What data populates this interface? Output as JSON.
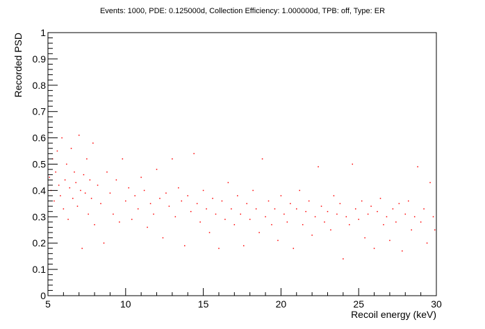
{
  "chart_data": {
    "type": "scatter",
    "title": "Events: 1000, PDE: 0.125000d, Collection Efficiency: 1.000000d, TPB: off, Type: ER",
    "xlabel": "Recoil energy (keV)",
    "ylabel": "Recorded PSD",
    "xlim": [
      5,
      30
    ],
    "ylim": [
      0,
      1
    ],
    "x_ticks": [
      5,
      10,
      15,
      20,
      25,
      30
    ],
    "x_tick_labels": [
      "5",
      "10",
      "15",
      "20",
      "25",
      "30"
    ],
    "y_ticks": [
      0,
      0.1,
      0.2,
      0.3,
      0.4,
      0.5,
      0.6,
      0.7,
      0.8,
      0.9,
      1
    ],
    "y_tick_labels": [
      "0",
      "0.1",
      "0.2",
      "0.3",
      "0.4",
      "0.5",
      "0.6",
      "0.7",
      "0.8",
      "0.9",
      "1"
    ],
    "grid": false,
    "legend": "none",
    "marker_color": "#ff0000",
    "axis_color": "#000000",
    "series": [
      {
        "points": [
          [
            5.1,
            0.45
          ],
          [
            5.2,
            0.4
          ],
          [
            5.3,
            0.52
          ],
          [
            5.4,
            0.36
          ],
          [
            5.5,
            0.47
          ],
          [
            5.6,
            0.55
          ],
          [
            5.7,
            0.42
          ],
          [
            5.8,
            0.38
          ],
          [
            5.9,
            0.6
          ],
          [
            6.0,
            0.33
          ],
          [
            6.1,
            0.44
          ],
          [
            6.2,
            0.5
          ],
          [
            6.3,
            0.29
          ],
          [
            6.4,
            0.41
          ],
          [
            6.5,
            0.56
          ],
          [
            6.6,
            0.37
          ],
          [
            6.7,
            0.47
          ],
          [
            6.8,
            0.43
          ],
          [
            6.9,
            0.34
          ],
          [
            7.0,
            0.61
          ],
          [
            7.1,
            0.4
          ],
          [
            7.2,
            0.18
          ],
          [
            7.3,
            0.46
          ],
          [
            7.4,
            0.39
          ],
          [
            7.5,
            0.52
          ],
          [
            7.6,
            0.31
          ],
          [
            7.7,
            0.44
          ],
          [
            7.8,
            0.37
          ],
          [
            7.9,
            0.58
          ],
          [
            8.0,
            0.27
          ],
          [
            8.2,
            0.42
          ],
          [
            8.4,
            0.35
          ],
          [
            8.6,
            0.2
          ],
          [
            8.8,
            0.47
          ],
          [
            9.0,
            0.39
          ],
          [
            9.2,
            0.31
          ],
          [
            9.4,
            0.44
          ],
          [
            9.6,
            0.28
          ],
          [
            9.8,
            0.52
          ],
          [
            10.0,
            0.36
          ],
          [
            10.2,
            0.41
          ],
          [
            10.4,
            0.29
          ],
          [
            10.6,
            0.38
          ],
          [
            10.8,
            0.33
          ],
          [
            11.0,
            0.45
          ],
          [
            11.2,
            0.4
          ],
          [
            11.4,
            0.26
          ],
          [
            11.6,
            0.35
          ],
          [
            11.8,
            0.31
          ],
          [
            12.0,
            0.48
          ],
          [
            12.2,
            0.37
          ],
          [
            12.4,
            0.22
          ],
          [
            12.6,
            0.39
          ],
          [
            12.8,
            0.34
          ],
          [
            13.0,
            0.52
          ],
          [
            13.2,
            0.3
          ],
          [
            13.4,
            0.41
          ],
          [
            13.6,
            0.36
          ],
          [
            13.8,
            0.19
          ],
          [
            14.0,
            0.38
          ],
          [
            14.2,
            0.32
          ],
          [
            14.4,
            0.54
          ],
          [
            14.6,
            0.35
          ],
          [
            14.8,
            0.28
          ],
          [
            15.0,
            0.4
          ],
          [
            15.2,
            0.33
          ],
          [
            15.4,
            0.24
          ],
          [
            15.6,
            0.37
          ],
          [
            15.8,
            0.31
          ],
          [
            16.0,
            0.18
          ],
          [
            16.2,
            0.36
          ],
          [
            16.4,
            0.29
          ],
          [
            16.6,
            0.43
          ],
          [
            16.8,
            0.33
          ],
          [
            17.0,
            0.27
          ],
          [
            17.2,
            0.38
          ],
          [
            17.4,
            0.31
          ],
          [
            17.6,
            0.19
          ],
          [
            17.8,
            0.35
          ],
          [
            18.0,
            0.29
          ],
          [
            18.2,
            0.4
          ],
          [
            18.4,
            0.33
          ],
          [
            18.6,
            0.24
          ],
          [
            18.8,
            0.52
          ],
          [
            19.0,
            0.3
          ],
          [
            19.2,
            0.36
          ],
          [
            19.4,
            0.27
          ],
          [
            19.6,
            0.33
          ],
          [
            19.8,
            0.21
          ],
          [
            20.0,
            0.38
          ],
          [
            20.2,
            0.31
          ],
          [
            20.4,
            0.28
          ],
          [
            20.6,
            0.35
          ],
          [
            20.8,
            0.18
          ],
          [
            21.0,
            0.33
          ],
          [
            21.2,
            0.4
          ],
          [
            21.4,
            0.27
          ],
          [
            21.6,
            0.32
          ],
          [
            21.8,
            0.36
          ],
          [
            22.0,
            0.23
          ],
          [
            22.2,
            0.3
          ],
          [
            22.4,
            0.49
          ],
          [
            22.6,
            0.34
          ],
          [
            22.8,
            0.28
          ],
          [
            23.0,
            0.32
          ],
          [
            23.2,
            0.25
          ],
          [
            23.4,
            0.38
          ],
          [
            23.6,
            0.31
          ],
          [
            23.8,
            0.35
          ],
          [
            24.0,
            0.14
          ],
          [
            24.2,
            0.3
          ],
          [
            24.4,
            0.27
          ],
          [
            24.6,
            0.5
          ],
          [
            24.8,
            0.33
          ],
          [
            25.0,
            0.29
          ],
          [
            25.2,
            0.36
          ],
          [
            25.4,
            0.22
          ],
          [
            25.6,
            0.31
          ],
          [
            25.8,
            0.34
          ],
          [
            26.0,
            0.18
          ],
          [
            26.2,
            0.32
          ],
          [
            26.4,
            0.37
          ],
          [
            26.6,
            0.27
          ],
          [
            26.8,
            0.3
          ],
          [
            27.0,
            0.21
          ],
          [
            27.2,
            0.33
          ],
          [
            27.4,
            0.28
          ],
          [
            27.6,
            0.35
          ],
          [
            27.8,
            0.17
          ],
          [
            28.0,
            0.31
          ],
          [
            28.2,
            0.36
          ],
          [
            28.4,
            0.25
          ],
          [
            28.6,
            0.3
          ],
          [
            28.8,
            0.49
          ],
          [
            29.0,
            0.28
          ],
          [
            29.2,
            0.33
          ],
          [
            29.4,
            0.2
          ],
          [
            29.6,
            0.43
          ],
          [
            29.8,
            0.3
          ],
          [
            29.9,
            0.25
          ]
        ]
      }
    ]
  }
}
